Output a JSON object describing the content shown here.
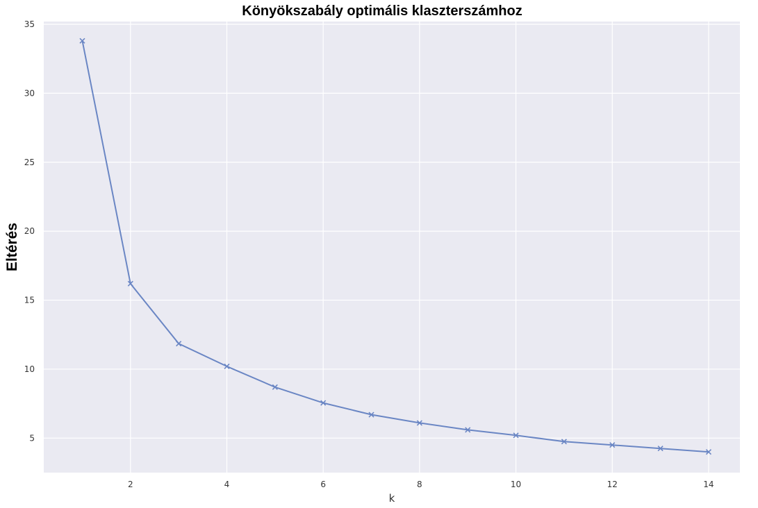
{
  "chart_data": {
    "type": "line",
    "title": "Könyökszabály optimális klaszterszámhoz",
    "xlabel": "k",
    "ylabel": "Eltérés",
    "x": [
      1,
      2,
      3,
      4,
      5,
      6,
      7,
      8,
      9,
      10,
      11,
      12,
      13,
      14
    ],
    "series": [
      {
        "values": [
          33.8,
          16.2,
          11.85,
          10.2,
          8.7,
          7.55,
          6.7,
          6.1,
          5.6,
          5.2,
          4.75,
          4.5,
          4.25,
          4.0
        ],
        "color": "#6a86c4",
        "marker": "x"
      }
    ],
    "xlim": [
      0.2,
      14.65
    ],
    "ylim": [
      2.5,
      35.2
    ],
    "xticks": [
      2,
      4,
      6,
      8,
      10,
      12,
      14
    ],
    "yticks": [
      5,
      10,
      15,
      20,
      25,
      30,
      35
    ],
    "grid": true,
    "background": "#eaeaf2",
    "grid_color": "#ffffff",
    "legend": "none"
  }
}
